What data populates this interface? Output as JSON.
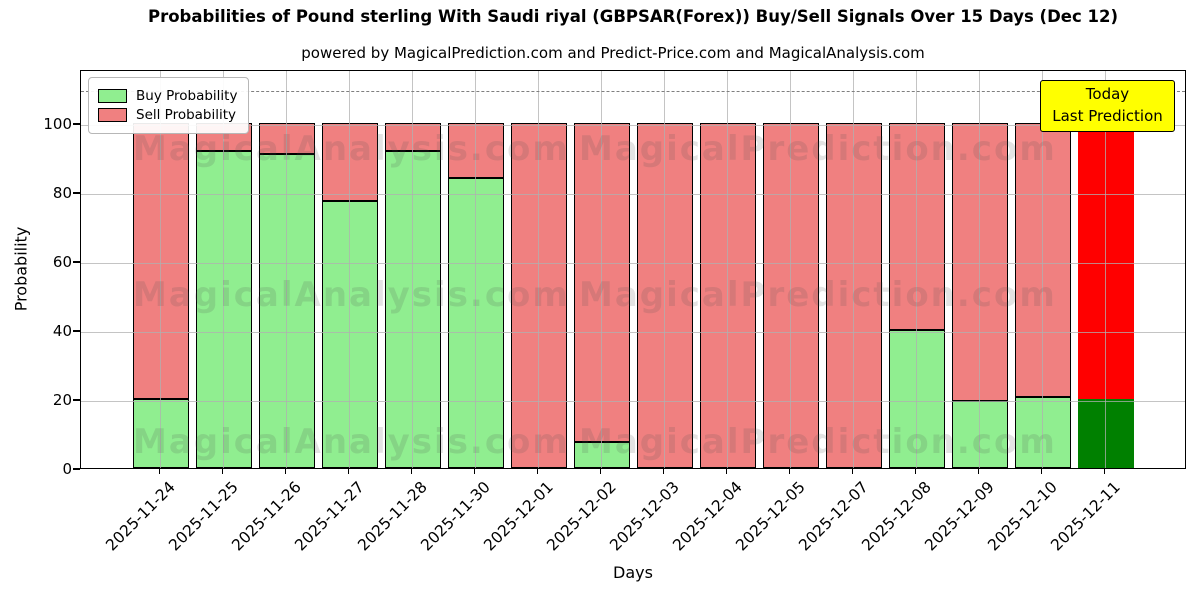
{
  "title": "Probabilities of Pound sterling With Saudi riyal (GBPSAR(Forex)) Buy/Sell Signals Over 15 Days (Dec 12)",
  "subtitle": "powered by MagicalPrediction.com and Predict-Price.com and MagicalAnalysis.com",
  "legend": {
    "items": [
      {
        "label": "Buy Probability",
        "color": "#90EE90"
      },
      {
        "label": "Sell Probability",
        "color": "#F08080"
      }
    ]
  },
  "annotation": {
    "line1": "Today",
    "line2": "Last Prediction",
    "bg": "#FFFF00"
  },
  "axes": {
    "ylabel": "Probability",
    "xlabel": "Days",
    "yticks": [
      0,
      20,
      40,
      60,
      80,
      100
    ],
    "ylim": [
      0,
      115.6
    ],
    "dashed_line_y": 110,
    "grid": true
  },
  "watermarks": {
    "left_text": "MagicalAnalysis.com",
    "right_text": "MagicalPrediction.com",
    "rows": 3
  },
  "colors": {
    "buy": "#90EE90",
    "sell": "#F08080",
    "today_buy": "#008000",
    "today_sell": "#FF0000",
    "bar_edge": "#000000",
    "annotation_bg": "#FFFF00",
    "grid": "#B0B0B0",
    "dashed_line": "#7F7F7F"
  },
  "chart_data": {
    "type": "bar",
    "stacked": true,
    "title": "Probabilities of Pound sterling With Saudi riyal (GBPSAR(Forex)) Buy/Sell Signals Over 15 Days (Dec 12)",
    "xlabel": "Days",
    "ylabel": "Probability",
    "ylim": [
      0,
      115.6
    ],
    "legend_position": "upper left",
    "grid": "on",
    "categories": [
      "2025-11-24",
      "2025-11-25",
      "2025-11-26",
      "2025-11-27",
      "2025-11-28",
      "2025-11-30",
      "2025-12-01",
      "2025-12-02",
      "2025-12-03",
      "2025-12-04",
      "2025-12-05",
      "2025-12-07",
      "2025-12-08",
      "2025-12-09",
      "2025-12-10",
      "2025-12-11"
    ],
    "series": [
      {
        "name": "Buy Probability",
        "values": [
          20,
          92,
          91,
          77.5,
          92,
          84,
          0,
          7.5,
          0,
          0,
          0,
          0,
          40,
          19.5,
          20.5,
          20
        ]
      },
      {
        "name": "Sell Probability",
        "values": [
          80,
          8,
          9,
          22.5,
          8,
          16,
          100,
          92.5,
          100,
          100,
          100,
          100,
          60,
          80.5,
          79.5,
          80
        ]
      }
    ],
    "today_bar_index": 15,
    "dashed_reference_line": 110
  }
}
